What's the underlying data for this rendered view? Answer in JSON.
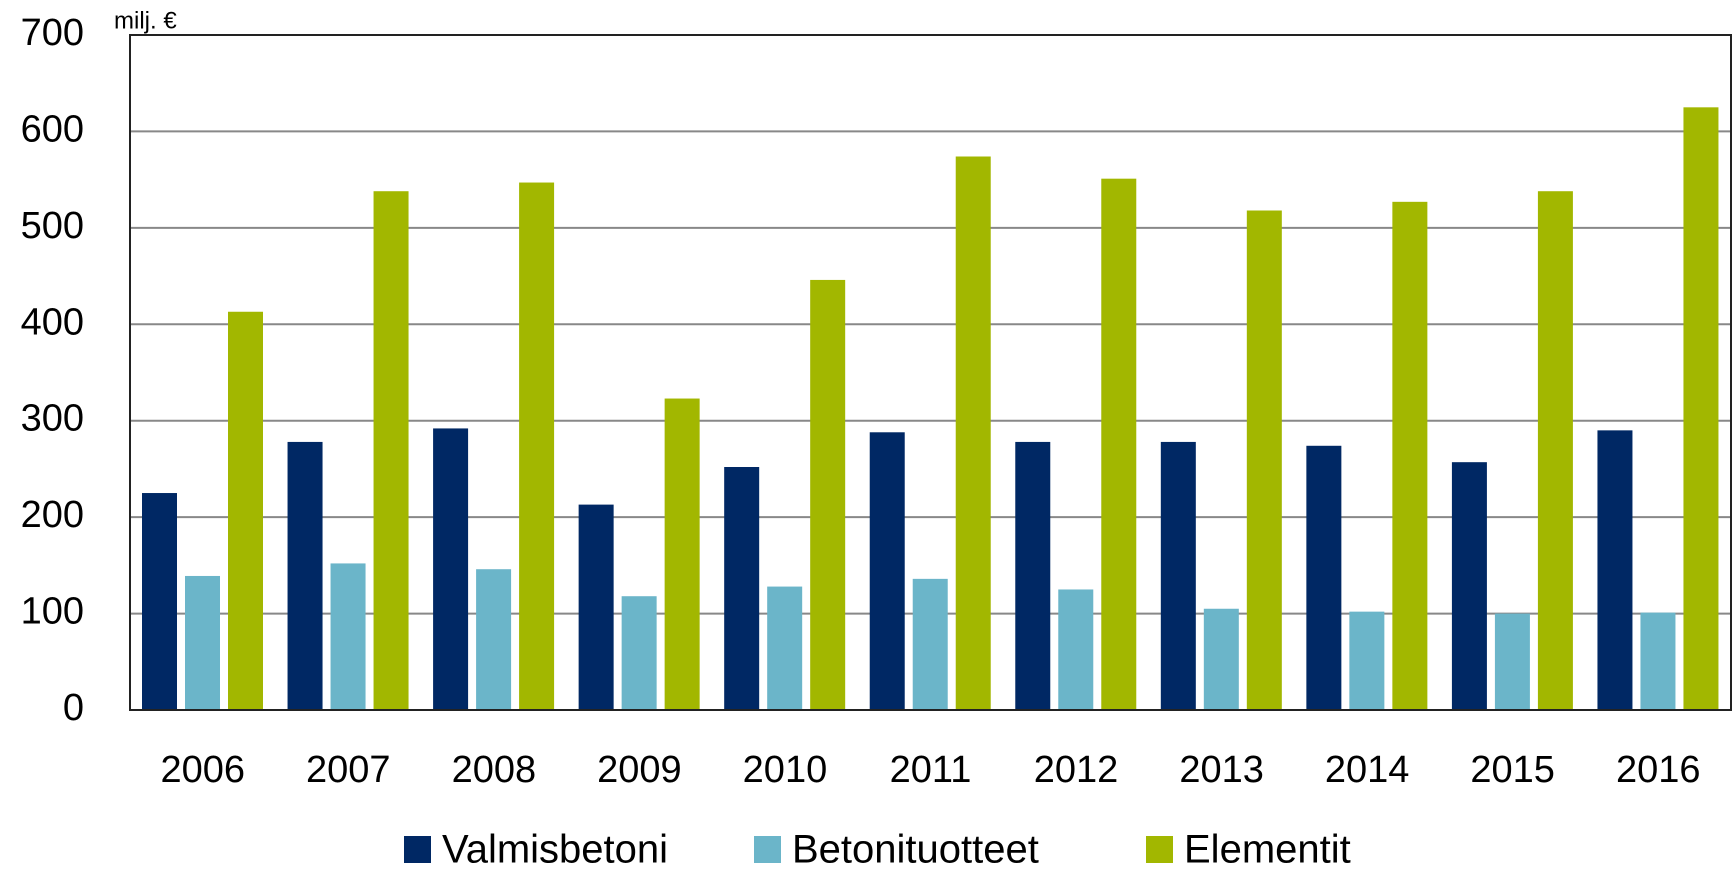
{
  "chart_data": {
    "type": "bar",
    "unit_label": "milj. €",
    "categories": [
      "2006",
      "2007",
      "2008",
      "2009",
      "2010",
      "2011",
      "2012",
      "2013",
      "2014",
      "2015",
      "2016"
    ],
    "series": [
      {
        "name": "Valmisbetoni",
        "color": "#002864",
        "values": [
          225,
          278,
          292,
          213,
          252,
          288,
          278,
          278,
          274,
          257,
          290
        ]
      },
      {
        "name": "Betonituotteet",
        "color": "#6bb5c9",
        "values": [
          139,
          152,
          146,
          118,
          128,
          136,
          125,
          105,
          102,
          100,
          101
        ]
      },
      {
        "name": "Elementit",
        "color": "#a2b700",
        "values": [
          413,
          538,
          547,
          323,
          446,
          574,
          551,
          518,
          527,
          538,
          625
        ]
      }
    ],
    "ylim": [
      0,
      700
    ],
    "yticks": [
      0,
      100,
      200,
      300,
      400,
      500,
      600,
      700
    ],
    "grid": true,
    "legend": "bottom"
  }
}
